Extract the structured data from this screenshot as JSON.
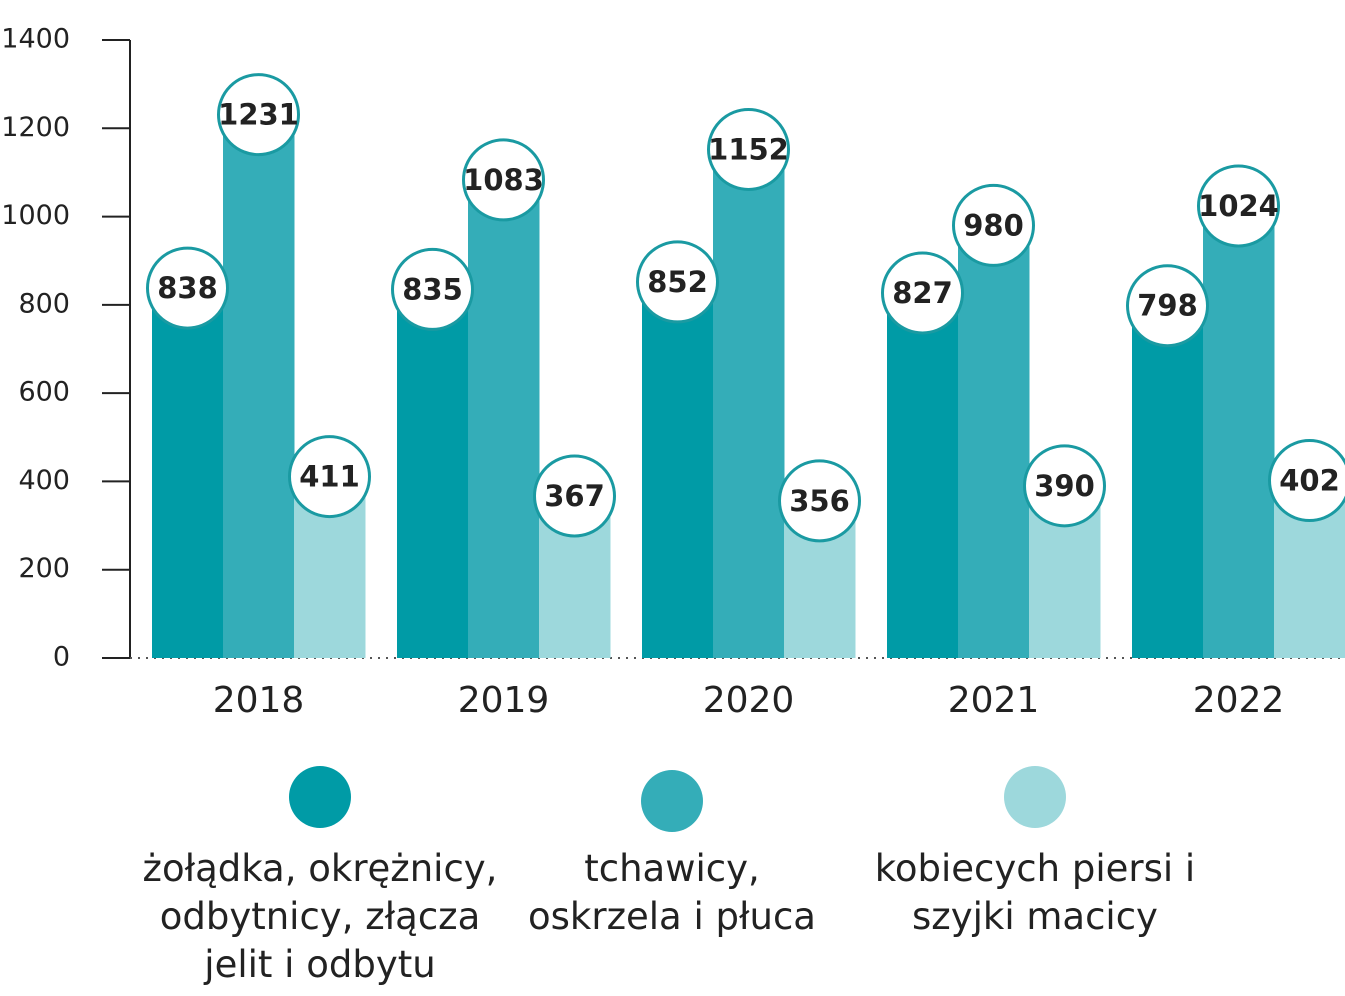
{
  "chart_data": {
    "type": "bar",
    "categories": [
      "2018",
      "2019",
      "2020",
      "2021",
      "2022"
    ],
    "series": [
      {
        "name": "żołądka, okrężnicy, odbytnicy, złącza jelit i odbytu",
        "color": "#009ba6",
        "values": [
          838,
          835,
          852,
          827,
          798
        ]
      },
      {
        "name": "tchawicy, oskrzela i płuca",
        "color": "#34adb8",
        "values": [
          1231,
          1083,
          1152,
          980,
          1024
        ]
      },
      {
        "name": "kobiecych piersi i szyjki macicy",
        "color": "#9dd8dc",
        "values": [
          411,
          367,
          356,
          390,
          402
        ]
      }
    ],
    "ylim": [
      0,
      1400
    ],
    "yticks": [
      0,
      200,
      400,
      600,
      800,
      1000,
      1200,
      1400
    ],
    "legend": "bottom"
  }
}
